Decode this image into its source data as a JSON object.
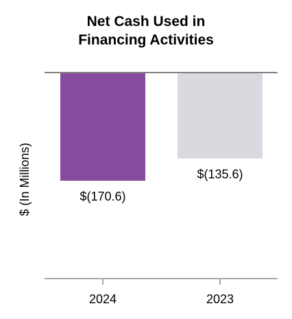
{
  "chart_data": {
    "type": "bar",
    "title_lines": [
      "Net Cash Used in",
      "Financing Activities"
    ],
    "ylabel": "$ (In Millions)",
    "categories": [
      "2024",
      "2023"
    ],
    "values": [
      -170.6,
      -135.6
    ],
    "value_labels": [
      "$(170.6)",
      "$(135.6)"
    ],
    "colors": [
      "#874B9E",
      "#D9DAE0"
    ],
    "ylim": [
      -325,
      0
    ],
    "grid": false,
    "legend": "none"
  }
}
